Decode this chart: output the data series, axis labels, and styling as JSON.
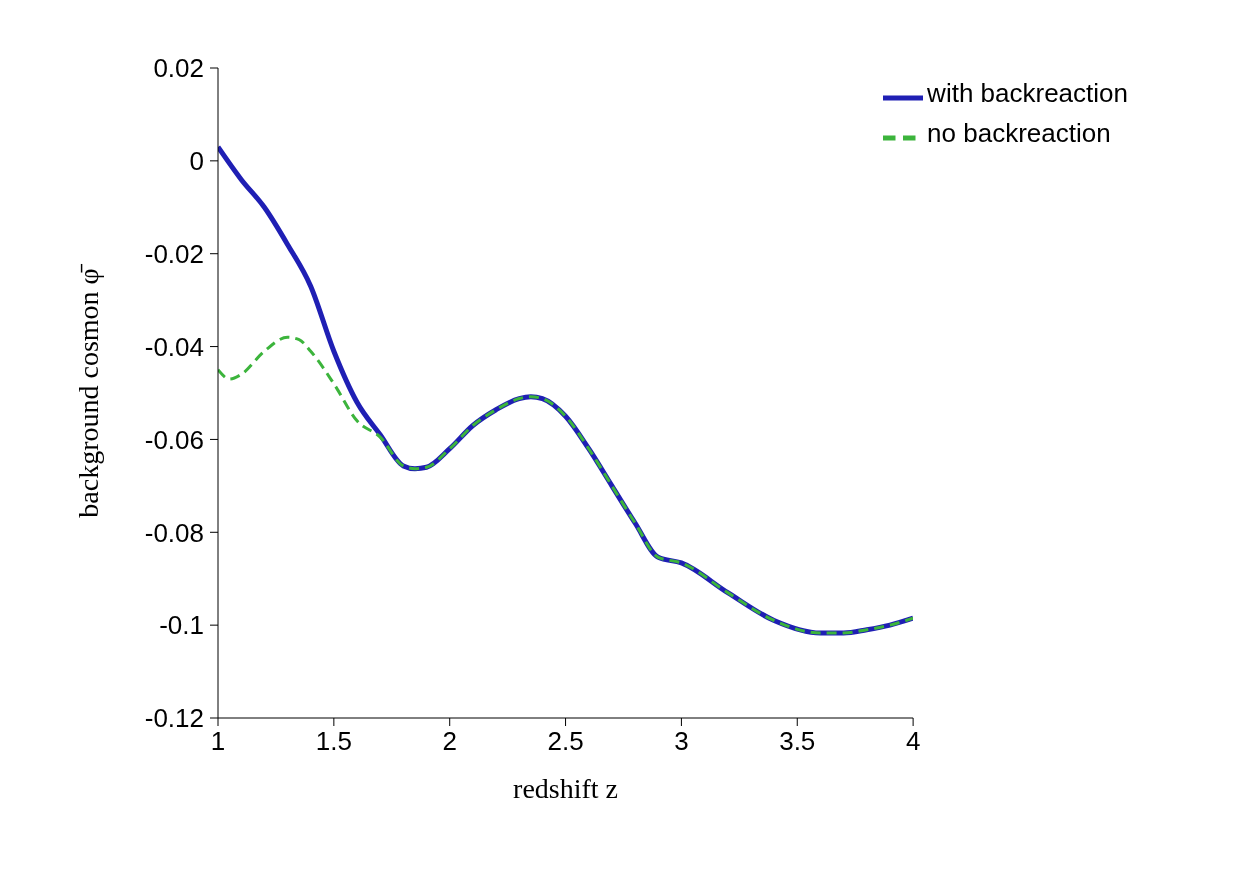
{
  "chart_data": {
    "type": "line",
    "xlabel": "redshift z",
    "ylabel": "background cosmon φ̄",
    "xlim": [
      1,
      4
    ],
    "xticks": [
      1,
      1.5,
      2,
      2.5,
      3,
      3.5,
      4
    ],
    "ylim": [
      -0.12,
      0.02
    ],
    "yticks": [
      -0.12,
      -0.1,
      -0.08,
      -0.06,
      -0.04,
      -0.02,
      0,
      0.02
    ],
    "grid": false,
    "legend": "top right",
    "marker": "none",
    "series": [
      {
        "name": "with backreaction",
        "color": "#1f1fb4",
        "line_style": "solid",
        "x": [
          1,
          1.1,
          1.2,
          1.3,
          1.4,
          1.5,
          1.6,
          1.7,
          1.8,
          1.85,
          1.9,
          2,
          2.1,
          2.2,
          2.3,
          2.35,
          2.4,
          2.5,
          2.6,
          2.7,
          2.8,
          2.9,
          3,
          3.2,
          3.4,
          3.6,
          3.7,
          3.8,
          3.9,
          4
        ],
        "values": [
          0.003,
          -0.004,
          -0.01,
          -0.018,
          -0.027,
          -0.041,
          -0.052,
          -0.059,
          -0.0657,
          -0.0663,
          -0.066,
          -0.062,
          -0.057,
          -0.0536,
          -0.0512,
          -0.0508,
          -0.0512,
          -0.055,
          -0.062,
          -0.07,
          -0.078,
          -0.0854,
          -0.0866,
          -0.093,
          -0.099,
          -0.1017,
          -0.1017,
          -0.101,
          -0.1,
          -0.0985
        ]
      },
      {
        "name": "no backreaction",
        "color": "#3cb43c",
        "line_style": "dashed",
        "x": [
          1,
          1.05,
          1.1,
          1.2,
          1.3,
          1.35,
          1.4,
          1.5,
          1.6,
          1.7,
          1.8,
          1.85,
          1.9,
          2,
          2.1,
          2.2,
          2.3,
          2.35,
          2.4,
          2.5,
          2.6,
          2.7,
          2.8,
          2.9,
          3,
          3.2,
          3.4,
          3.6,
          3.7,
          3.8,
          3.9,
          4
        ],
        "values": [
          -0.045,
          -0.047,
          -0.046,
          -0.041,
          -0.038,
          -0.0385,
          -0.041,
          -0.048,
          -0.056,
          -0.0595,
          -0.0657,
          -0.0663,
          -0.066,
          -0.062,
          -0.057,
          -0.0536,
          -0.0512,
          -0.0508,
          -0.0512,
          -0.055,
          -0.062,
          -0.07,
          -0.078,
          -0.0854,
          -0.0866,
          -0.093,
          -0.099,
          -0.1017,
          -0.1017,
          -0.101,
          -0.1,
          -0.0985
        ]
      }
    ]
  }
}
